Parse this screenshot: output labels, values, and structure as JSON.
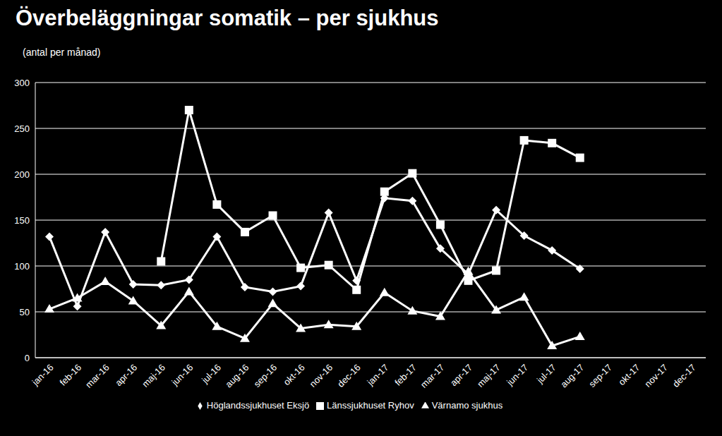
{
  "chart_data": {
    "type": "line",
    "title": "Överbeläggningar somatik – per sjukhus",
    "subtitle": "(antal per månad)",
    "categories": [
      "jan-16",
      "feb-16",
      "mar-16",
      "apr-16",
      "maj-16",
      "jun-16",
      "jul-16",
      "aug-16",
      "sep-16",
      "okt-16",
      "nov-16",
      "dec-16",
      "jan-17",
      "feb-17",
      "mar-17",
      "apr-17",
      "maj-17",
      "jun-17",
      "jul-17",
      "aug-17",
      "sep-17",
      "okt-17",
      "nov-17",
      "dec-17"
    ],
    "series": [
      {
        "name": "Höglandssjukhuset Eksjö",
        "color": "#ffffff",
        "marker": "diamond",
        "values": [
          132,
          56,
          137,
          80,
          79,
          85,
          132,
          77,
          72,
          78,
          158,
          84,
          174,
          171,
          119,
          91,
          161,
          133,
          117,
          97,
          null,
          null,
          null,
          null
        ]
      },
      {
        "name": "Länssjukhuset Ryhov",
        "color": "#ffffff",
        "marker": "square",
        "values": [
          null,
          null,
          null,
          null,
          105,
          270,
          167,
          137,
          155,
          98,
          101,
          74,
          181,
          201,
          145,
          84,
          95,
          237,
          234,
          218,
          null,
          null,
          null,
          null
        ]
      },
      {
        "name": "Värnamo sjukhus",
        "color": "#ffffff",
        "marker": "triangle",
        "values": [
          53,
          65,
          83,
          62,
          35,
          72,
          34,
          21,
          59,
          32,
          36,
          34,
          71,
          51,
          45,
          94,
          52,
          66,
          13,
          23,
          null,
          null,
          null,
          null
        ]
      }
    ],
    "ylim": [
      0,
      300
    ],
    "yticks": [
      0,
      50,
      100,
      150,
      200,
      250,
      300
    ],
    "grid": true,
    "legend": "bottom"
  }
}
